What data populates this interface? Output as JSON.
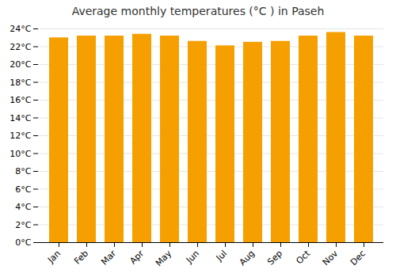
{
  "chart_data": {
    "type": "bar",
    "title": "Average monthly temperatures (°C ) in Paseh",
    "categories": [
      "Jan",
      "Feb",
      "Mar",
      "Apr",
      "May",
      "Jun",
      "Jul",
      "Aug",
      "Sep",
      "Oct",
      "Nov",
      "Dec"
    ],
    "values": [
      23.0,
      23.2,
      23.2,
      23.4,
      23.2,
      22.6,
      22.1,
      22.5,
      22.6,
      23.2,
      23.6,
      23.2
    ],
    "color": "#F5A000",
    "ylim": [
      0,
      24
    ],
    "yticks": [
      {
        "value": 0,
        "label": "0°C"
      },
      {
        "value": 2,
        "label": "2°C"
      },
      {
        "value": 4,
        "label": "4°C"
      },
      {
        "value": 6,
        "label": "6°C"
      },
      {
        "value": 8,
        "label": "8°C"
      },
      {
        "value": 10,
        "label": "10°C"
      },
      {
        "value": 12,
        "label": "12°C"
      },
      {
        "value": 14,
        "label": "14°C"
      },
      {
        "value": 16,
        "label": "16°C"
      },
      {
        "value": 18,
        "label": "18°C"
      },
      {
        "value": 20,
        "label": "20°C"
      },
      {
        "value": 22,
        "label": "22°C"
      },
      {
        "value": 24,
        "label": "24°C"
      }
    ],
    "grid": true
  }
}
